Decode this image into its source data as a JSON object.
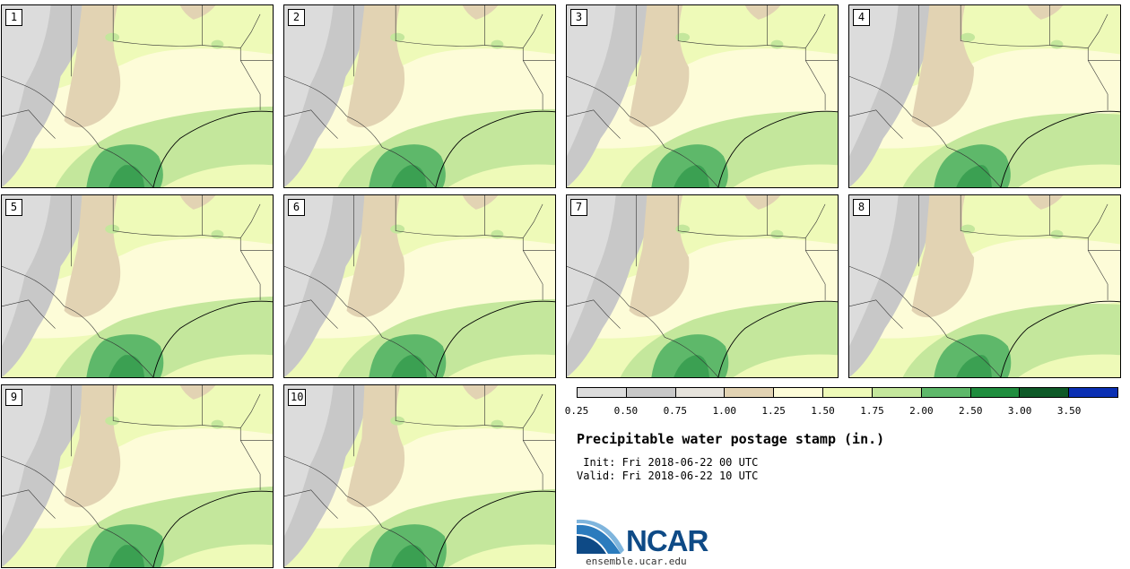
{
  "panels": [
    {
      "label": "1"
    },
    {
      "label": "2"
    },
    {
      "label": "3"
    },
    {
      "label": "4"
    },
    {
      "label": "5"
    },
    {
      "label": "6"
    },
    {
      "label": "7"
    },
    {
      "label": "8"
    },
    {
      "label": "9"
    },
    {
      "label": "10"
    }
  ],
  "colorbar": {
    "ticks": [
      "0.25",
      "0.50",
      "0.75",
      "1.00",
      "1.25",
      "1.50",
      "1.75",
      "2.00",
      "2.50",
      "3.00",
      "3.50"
    ],
    "colors": [
      "#dcdcdc",
      "#c8c8c8",
      "#e6e3dc",
      "#e2d3b3",
      "#fdfcd8",
      "#eefab8",
      "#c4e79c",
      "#5eb86a",
      "#1f8d3e",
      "#0e5a28",
      "#0a2fb3"
    ]
  },
  "title": "Precipitable water postage stamp (in.)",
  "init": " Init: Fri 2018-06-22 00 UTC",
  "valid": "Valid: Fri 2018-06-22 10 UTC",
  "logo": {
    "text": "NCAR",
    "url": "ensemble.ucar.edu"
  }
}
